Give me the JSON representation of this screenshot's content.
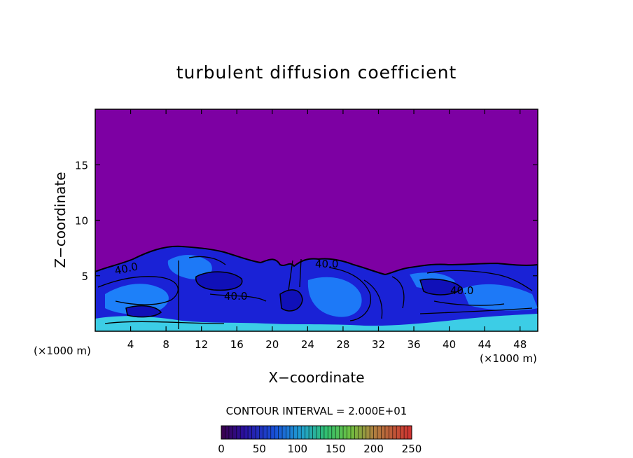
{
  "chart_data": {
    "type": "heatmap",
    "title": "turbulent diffusion coefficient",
    "xlabel": "X−coordinate",
    "ylabel": "Z−coordinate",
    "x_unit_left": "(×1000 m)",
    "x_unit_right": "(×1000 m)",
    "xlim": [
      0,
      50
    ],
    "ylim": [
      0,
      20
    ],
    "x_ticks": [
      4,
      8,
      12,
      16,
      20,
      24,
      28,
      32,
      36,
      40,
      44,
      48
    ],
    "y_ticks": [
      5,
      10,
      15
    ],
    "contour_labels": [
      {
        "text": "40.0",
        "x": 3.5,
        "y": 5.5
      },
      {
        "text": "40.0",
        "x": 15.5,
        "y": 3.2
      },
      {
        "text": "40.0",
        "x": 26.5,
        "y": 6.0
      },
      {
        "text": "40.0",
        "x": 41.5,
        "y": 3.7
      }
    ],
    "contour_interval_text": "CONTOUR INTERVAL = 2.000E+01",
    "colorbar": {
      "min": 0,
      "max": 250,
      "tick_labels": [
        "0",
        "50",
        "100",
        "150",
        "200",
        "250"
      ]
    },
    "colors": {
      "background_field": "#7d00a3",
      "low_values": "#1a1ad8",
      "mid_values": "#1e90ff",
      "high_values": "#40e0e8"
    }
  }
}
